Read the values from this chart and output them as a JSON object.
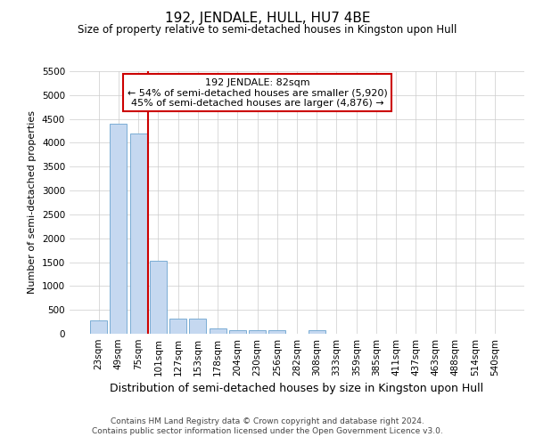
{
  "title": "192, JENDALE, HULL, HU7 4BE",
  "subtitle": "Size of property relative to semi-detached houses in Kingston upon Hull",
  "xlabel": "Distribution of semi-detached houses by size in Kingston upon Hull",
  "ylabel": "Number of semi-detached properties",
  "footnote1": "Contains HM Land Registry data © Crown copyright and database right 2024.",
  "footnote2": "Contains public sector information licensed under the Open Government Licence v3.0.",
  "annotation_line1": "192 JENDALE: 82sqm",
  "annotation_line2": "← 54% of semi-detached houses are smaller (5,920)",
  "annotation_line3": "45% of semi-detached houses are larger (4,876) →",
  "bar_color": "#c5d8f0",
  "bar_edge_color": "#7aadd4",
  "line_color": "#cc0000",
  "annotation_box_color": "#cc0000",
  "background_color": "#ffffff",
  "grid_color": "#cccccc",
  "ylim": [
    0,
    5500
  ],
  "yticks": [
    0,
    500,
    1000,
    1500,
    2000,
    2500,
    3000,
    3500,
    4000,
    4500,
    5000,
    5500
  ],
  "categories": [
    "23sqm",
    "49sqm",
    "75sqm",
    "101sqm",
    "127sqm",
    "153sqm",
    "178sqm",
    "204sqm",
    "230sqm",
    "256sqm",
    "282sqm",
    "308sqm",
    "333sqm",
    "359sqm",
    "385sqm",
    "411sqm",
    "437sqm",
    "463sqm",
    "488sqm",
    "514sqm",
    "540sqm"
  ],
  "values": [
    280,
    4400,
    4200,
    1520,
    320,
    320,
    120,
    80,
    80,
    70,
    0,
    70,
    0,
    0,
    0,
    0,
    0,
    0,
    0,
    0,
    0
  ],
  "red_line_x": 2.5,
  "title_fontsize": 11,
  "subtitle_fontsize": 8.5,
  "xlabel_fontsize": 9,
  "ylabel_fontsize": 8,
  "tick_fontsize": 7.5,
  "annotation_fontsize": 8,
  "footnote_fontsize": 6.5
}
